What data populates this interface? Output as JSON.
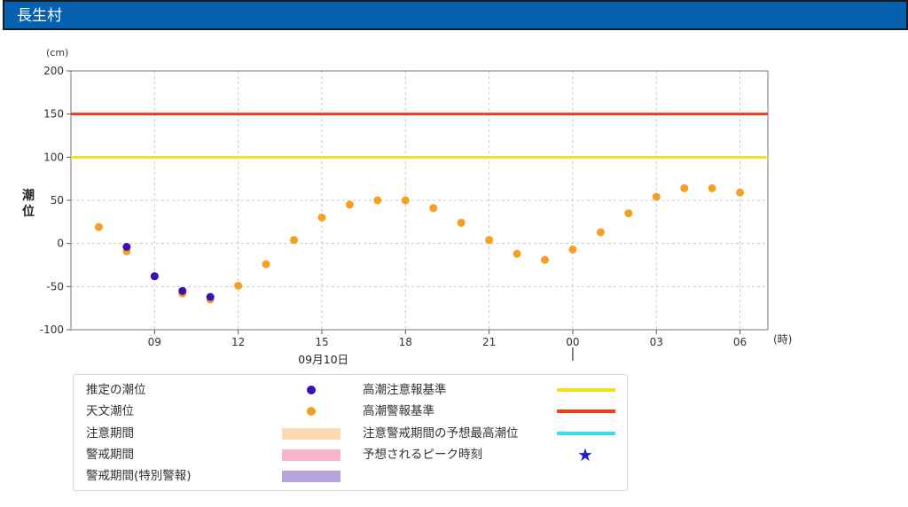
{
  "header": {
    "title": "長生村"
  },
  "chart_data": {
    "type": "scatter",
    "unit_label": "(cm)",
    "xunit_label": "(時)",
    "ylabel": "潮位",
    "ylim": [
      -100,
      200
    ],
    "yticks": [
      -100,
      -50,
      0,
      50,
      100,
      150,
      200
    ],
    "x_start": "2023-09-10T06:00",
    "x_end": "2023-09-11T07:00",
    "xticks": [
      {
        "t": "2023-09-10T09:00",
        "label": "09"
      },
      {
        "t": "2023-09-10T12:00",
        "label": "12"
      },
      {
        "t": "2023-09-10T15:00",
        "label": "15"
      },
      {
        "t": "2023-09-10T18:00",
        "label": "18"
      },
      {
        "t": "2023-09-10T21:00",
        "label": "21"
      },
      {
        "t": "2023-09-11T00:00",
        "label": "00"
      },
      {
        "t": "2023-09-11T03:00",
        "label": "03"
      },
      {
        "t": "2023-09-11T06:00",
        "label": "06"
      }
    ],
    "date_label": {
      "t": "2023-09-10T12:00",
      "label": "09月10日"
    },
    "day_boundary": "2023-09-11T00:00",
    "grid": true,
    "reference_lines": [
      {
        "name": "高潮注意報基準",
        "value": 100,
        "color": "#f0e020"
      },
      {
        "name": "高潮警報基準",
        "value": 150,
        "color": "#e8401c"
      }
    ],
    "series": [
      {
        "name": "天文潮位",
        "color": "#f5a020",
        "points": [
          {
            "t": "2023-09-10T07:00",
            "y": 19
          },
          {
            "t": "2023-09-10T08:00",
            "y": -9
          },
          {
            "t": "2023-09-10T09:00",
            "y": -38
          },
          {
            "t": "2023-09-10T10:00",
            "y": -58
          },
          {
            "t": "2023-09-10T11:00",
            "y": -65
          },
          {
            "t": "2023-09-10T12:00",
            "y": -49
          },
          {
            "t": "2023-09-10T13:00",
            "y": -24
          },
          {
            "t": "2023-09-10T14:00",
            "y": 4
          },
          {
            "t": "2023-09-10T15:00",
            "y": 30
          },
          {
            "t": "2023-09-10T16:00",
            "y": 45
          },
          {
            "t": "2023-09-10T17:00",
            "y": 50
          },
          {
            "t": "2023-09-10T18:00",
            "y": 50
          },
          {
            "t": "2023-09-10T19:00",
            "y": 41
          },
          {
            "t": "2023-09-10T20:00",
            "y": 24
          },
          {
            "t": "2023-09-10T21:00",
            "y": 4
          },
          {
            "t": "2023-09-10T22:00",
            "y": -12
          },
          {
            "t": "2023-09-10T23:00",
            "y": -19
          },
          {
            "t": "2023-09-11T00:00",
            "y": -7
          },
          {
            "t": "2023-09-11T01:00",
            "y": 13
          },
          {
            "t": "2023-09-11T02:00",
            "y": 35
          },
          {
            "t": "2023-09-11T03:00",
            "y": 54
          },
          {
            "t": "2023-09-11T04:00",
            "y": 64
          },
          {
            "t": "2023-09-11T05:00",
            "y": 64
          },
          {
            "t": "2023-09-11T06:00",
            "y": 59
          }
        ]
      },
      {
        "name": "推定の潮位",
        "color": "#3a10b0",
        "points": [
          {
            "t": "2023-09-10T08:00",
            "y": -4
          },
          {
            "t": "2023-09-10T09:00",
            "y": -38
          },
          {
            "t": "2023-09-10T10:00",
            "y": -55
          },
          {
            "t": "2023-09-10T11:00",
            "y": -62
          }
        ]
      }
    ]
  },
  "legend": {
    "items": [
      {
        "label": "推定の潮位",
        "symbol": "dot",
        "color": "#3a10b0"
      },
      {
        "label": "天文潮位",
        "symbol": "dot",
        "color": "#f5a020"
      },
      {
        "label": "注意期間",
        "symbol": "swatch",
        "color": "#fad9b3"
      },
      {
        "label": "警戒期間",
        "symbol": "swatch",
        "color": "#f8b4cc"
      },
      {
        "label": "警戒期間(特別警報)",
        "symbol": "swatch",
        "color": "#b7a2e0"
      },
      {
        "label": "高潮注意報基準",
        "symbol": "line",
        "color": "#f0e020"
      },
      {
        "label": "高潮警報基準",
        "symbol": "line",
        "color": "#e8401c"
      },
      {
        "label": "注意警戒期間の予想最高潮位",
        "symbol": "line",
        "color": "#30e0ee"
      },
      {
        "label": "予想されるピーク時刻",
        "symbol": "star",
        "color": "#1a20d8",
        "glyph": "★"
      }
    ]
  }
}
